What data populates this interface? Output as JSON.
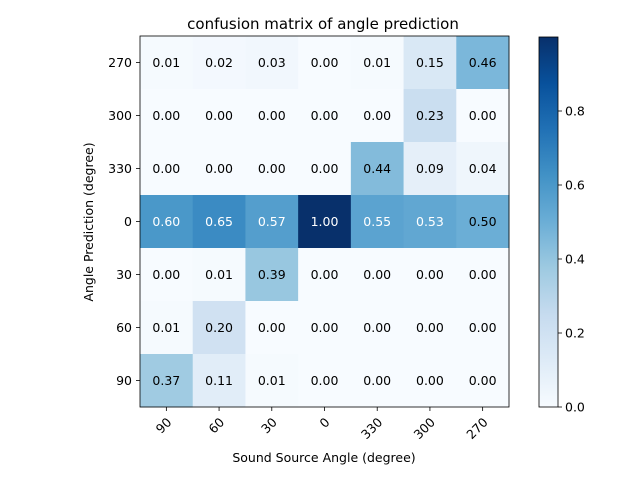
{
  "chart_data": {
    "type": "heatmap",
    "title": "confusion matrix of angle prediction",
    "xlabel": "Sound Source Angle (degree)",
    "ylabel": "Angle Prediction (degree)",
    "x_categories": [
      "90",
      "60",
      "30",
      "0",
      "330",
      "300",
      "270"
    ],
    "y_categories": [
      "270",
      "300",
      "330",
      "0",
      "30",
      "60",
      "90"
    ],
    "values": [
      [
        0.01,
        0.02,
        0.03,
        0.0,
        0.01,
        0.15,
        0.46
      ],
      [
        0.0,
        0.0,
        0.0,
        0.0,
        0.0,
        0.23,
        0.0
      ],
      [
        0.0,
        0.0,
        0.0,
        0.0,
        0.44,
        0.09,
        0.04
      ],
      [
        0.6,
        0.65,
        0.57,
        1.0,
        0.55,
        0.53,
        0.5
      ],
      [
        0.0,
        0.01,
        0.39,
        0.0,
        0.0,
        0.0,
        0.0
      ],
      [
        0.01,
        0.2,
        0.0,
        0.0,
        0.0,
        0.0,
        0.0
      ],
      [
        0.37,
        0.11,
        0.01,
        0.0,
        0.0,
        0.0,
        0.0
      ]
    ],
    "colormap": "Blues",
    "colorbar": {
      "range": [
        0,
        1
      ],
      "ticks": [
        "0.0",
        "0.2",
        "0.4",
        "0.6",
        "0.8"
      ],
      "tick_values": [
        0.0,
        0.2,
        0.4,
        0.6,
        0.8
      ]
    },
    "grid": false
  }
}
